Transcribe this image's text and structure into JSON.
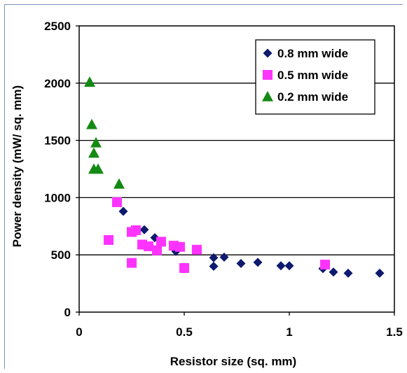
{
  "chart_data": {
    "type": "scatter",
    "xlabel": "Resistor size (sq. mm)",
    "ylabel": "Power density (mW/ sq. mm)",
    "xlim": [
      0,
      1.5
    ],
    "ylim": [
      0,
      2500
    ],
    "x_ticks": [
      {
        "value": 0,
        "label": "0"
      },
      {
        "value": 0.5,
        "label": "0.5"
      },
      {
        "value": 1,
        "label": "1"
      },
      {
        "value": 1.5,
        "label": "1.5"
      }
    ],
    "y_ticks": [
      {
        "value": 0,
        "label": "0"
      },
      {
        "value": 500,
        "label": "500"
      },
      {
        "value": 1000,
        "label": "1000"
      },
      {
        "value": 1500,
        "label": "1500"
      },
      {
        "value": 2000,
        "label": "2000"
      },
      {
        "value": 2500,
        "label": "2500"
      }
    ],
    "grid": "horizontal",
    "legend_position": "top-right",
    "series": [
      {
        "name": "0.8 mm wide",
        "marker": "diamond",
        "color": "#0d1a6e",
        "points": [
          {
            "x": 0.21,
            "y": 880
          },
          {
            "x": 0.31,
            "y": 720
          },
          {
            "x": 0.36,
            "y": 650
          },
          {
            "x": 0.46,
            "y": 530
          },
          {
            "x": 0.64,
            "y": 475
          },
          {
            "x": 0.64,
            "y": 400
          },
          {
            "x": 0.69,
            "y": 480
          },
          {
            "x": 0.77,
            "y": 425
          },
          {
            "x": 0.85,
            "y": 435
          },
          {
            "x": 0.96,
            "y": 405
          },
          {
            "x": 1.0,
            "y": 405
          },
          {
            "x": 1.16,
            "y": 380
          },
          {
            "x": 1.21,
            "y": 350
          },
          {
            "x": 1.28,
            "y": 340
          },
          {
            "x": 1.43,
            "y": 340
          }
        ]
      },
      {
        "name": "0.5 mm wide",
        "marker": "square",
        "color": "#ff33ff",
        "points": [
          {
            "x": 0.14,
            "y": 630
          },
          {
            "x": 0.18,
            "y": 960
          },
          {
            "x": 0.25,
            "y": 430
          },
          {
            "x": 0.25,
            "y": 700
          },
          {
            "x": 0.27,
            "y": 715
          },
          {
            "x": 0.3,
            "y": 590
          },
          {
            "x": 0.33,
            "y": 575
          },
          {
            "x": 0.37,
            "y": 540
          },
          {
            "x": 0.39,
            "y": 615
          },
          {
            "x": 0.45,
            "y": 580
          },
          {
            "x": 0.48,
            "y": 570
          },
          {
            "x": 0.5,
            "y": 385
          },
          {
            "x": 0.56,
            "y": 545
          },
          {
            "x": 1.17,
            "y": 415
          }
        ]
      },
      {
        "name": "0.2 mm wide",
        "marker": "triangle",
        "color": "#148a14",
        "points": [
          {
            "x": 0.05,
            "y": 2010
          },
          {
            "x": 0.06,
            "y": 1640
          },
          {
            "x": 0.08,
            "y": 1480
          },
          {
            "x": 0.07,
            "y": 1390
          },
          {
            "x": 0.07,
            "y": 1250
          },
          {
            "x": 0.09,
            "y": 1250
          },
          {
            "x": 0.19,
            "y": 1120
          }
        ]
      }
    ]
  }
}
